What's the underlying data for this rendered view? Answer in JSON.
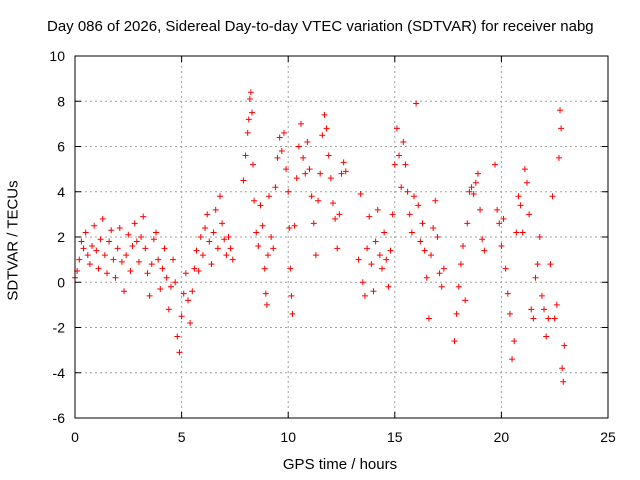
{
  "chart_data": {
    "type": "scatter",
    "title": "Day 086 of 2026, Sidereal Day-to-day VTEC variation (SDTVAR) for receiver nabg",
    "xlabel": "GPS time / hours",
    "ylabel": "SDTVAR / TECUs",
    "xlim": [
      0,
      25
    ],
    "ylim": [
      -6,
      10
    ],
    "xticks": [
      "0",
      "5",
      "10",
      "15",
      "20",
      "25"
    ],
    "yticks": [
      "-6",
      "-4",
      "-2",
      "0",
      "2",
      "4",
      "6",
      "8",
      "10"
    ],
    "grid": true,
    "marker": "+",
    "series": [
      {
        "name": "SDTVAR",
        "color": "#ff0000",
        "points": [
          [
            0.0,
            0.2
          ],
          [
            0.1,
            0.5
          ],
          [
            0.2,
            1.0
          ],
          [
            0.3,
            1.8
          ],
          [
            0.4,
            1.5
          ],
          [
            0.5,
            2.2
          ],
          [
            0.6,
            1.2
          ],
          [
            0.7,
            0.8
          ],
          [
            0.8,
            1.6
          ],
          [
            0.9,
            2.5
          ],
          [
            1.0,
            1.4
          ],
          [
            1.1,
            0.6
          ],
          [
            1.2,
            1.9
          ],
          [
            1.3,
            2.8
          ],
          [
            1.4,
            1.2
          ],
          [
            1.5,
            0.4
          ],
          [
            1.6,
            1.8
          ],
          [
            1.7,
            2.3
          ],
          [
            1.8,
            1.0
          ],
          [
            1.9,
            0.2
          ],
          [
            2.0,
            1.5
          ],
          [
            2.1,
            2.4
          ],
          [
            2.2,
            0.9
          ],
          [
            2.3,
            -0.4
          ],
          [
            2.4,
            1.2
          ],
          [
            2.5,
            2.1
          ],
          [
            2.6,
            0.5
          ],
          [
            2.7,
            1.6
          ],
          [
            2.8,
            2.6
          ],
          [
            2.9,
            1.8
          ],
          [
            3.0,
            0.9
          ],
          [
            3.1,
            2.0
          ],
          [
            3.2,
            2.9
          ],
          [
            3.3,
            1.5
          ],
          [
            3.4,
            0.4
          ],
          [
            3.5,
            -0.6
          ],
          [
            3.6,
            0.8
          ],
          [
            3.7,
            1.9
          ],
          [
            3.8,
            2.2
          ],
          [
            3.9,
            1.0
          ],
          [
            4.0,
            -0.3
          ],
          [
            4.1,
            0.6
          ],
          [
            4.2,
            1.5
          ],
          [
            4.3,
            0.2
          ],
          [
            4.4,
            -1.2
          ],
          [
            4.5,
            -0.2
          ],
          [
            4.6,
            1.0
          ],
          [
            4.7,
            0.0
          ],
          [
            4.8,
            -2.4
          ],
          [
            4.9,
            -3.1
          ],
          [
            5.0,
            -1.5
          ],
          [
            5.1,
            -0.5
          ],
          [
            5.2,
            0.4
          ],
          [
            5.3,
            -0.8
          ],
          [
            5.4,
            -1.8
          ],
          [
            5.5,
            -0.4
          ],
          [
            5.6,
            0.6
          ],
          [
            5.7,
            1.4
          ],
          [
            5.8,
            0.5
          ],
          [
            5.9,
            2.0
          ],
          [
            6.0,
            1.2
          ],
          [
            6.1,
            2.4
          ],
          [
            6.2,
            3.0
          ],
          [
            6.3,
            1.8
          ],
          [
            6.4,
            0.8
          ],
          [
            6.5,
            2.2
          ],
          [
            6.6,
            3.2
          ],
          [
            6.7,
            1.5
          ],
          [
            6.8,
            3.8
          ],
          [
            6.9,
            2.6
          ],
          [
            7.0,
            1.9
          ],
          [
            7.1,
            1.2
          ],
          [
            7.2,
            2.0
          ],
          [
            7.3,
            1.5
          ],
          [
            7.4,
            1.0
          ],
          [
            7.9,
            4.5
          ],
          [
            8.0,
            5.6
          ],
          [
            8.1,
            6.6
          ],
          [
            8.15,
            7.2
          ],
          [
            8.2,
            8.1
          ],
          [
            8.25,
            8.4
          ],
          [
            8.3,
            7.5
          ],
          [
            8.35,
            5.2
          ],
          [
            8.4,
            3.6
          ],
          [
            8.5,
            2.2
          ],
          [
            8.6,
            1.6
          ],
          [
            8.7,
            3.4
          ],
          [
            8.8,
            2.5
          ],
          [
            8.9,
            0.6
          ],
          [
            8.95,
            -0.5
          ],
          [
            9.0,
            -1.0
          ],
          [
            9.05,
            1.2
          ],
          [
            9.1,
            3.8
          ],
          [
            9.2,
            2.0
          ],
          [
            9.3,
            1.5
          ],
          [
            9.4,
            4.2
          ],
          [
            9.5,
            5.5
          ],
          [
            9.6,
            6.4
          ],
          [
            9.7,
            5.8
          ],
          [
            9.8,
            6.6
          ],
          [
            9.9,
            5.0
          ],
          [
            10.0,
            4.0
          ],
          [
            10.05,
            2.4
          ],
          [
            10.1,
            0.6
          ],
          [
            10.15,
            -0.6
          ],
          [
            10.2,
            -1.4
          ],
          [
            10.3,
            2.5
          ],
          [
            10.4,
            4.6
          ],
          [
            10.5,
            6.0
          ],
          [
            10.6,
            7.0
          ],
          [
            10.7,
            5.5
          ],
          [
            10.8,
            4.8
          ],
          [
            10.9,
            6.2
          ],
          [
            11.0,
            5.0
          ],
          [
            11.1,
            3.8
          ],
          [
            11.2,
            2.6
          ],
          [
            11.3,
            1.2
          ],
          [
            11.4,
            3.6
          ],
          [
            11.5,
            4.8
          ],
          [
            11.6,
            6.5
          ],
          [
            11.7,
            7.4
          ],
          [
            11.8,
            6.8
          ],
          [
            11.9,
            5.6
          ],
          [
            12.0,
            4.6
          ],
          [
            12.1,
            3.5
          ],
          [
            12.2,
            2.8
          ],
          [
            12.3,
            1.5
          ],
          [
            12.4,
            3.0
          ],
          [
            12.5,
            4.8
          ],
          [
            12.6,
            5.3
          ],
          [
            12.7,
            4.9
          ],
          [
            13.3,
            1.0
          ],
          [
            13.4,
            3.9
          ],
          [
            13.5,
            0.0
          ],
          [
            13.6,
            -0.6
          ],
          [
            13.7,
            1.5
          ],
          [
            13.8,
            2.9
          ],
          [
            13.9,
            0.8
          ],
          [
            14.0,
            -0.4
          ],
          [
            14.1,
            1.8
          ],
          [
            14.2,
            3.2
          ],
          [
            14.3,
            1.2
          ],
          [
            14.4,
            0.6
          ],
          [
            14.5,
            2.2
          ],
          [
            14.6,
            1.0
          ],
          [
            14.7,
            -0.2
          ],
          [
            14.8,
            1.4
          ],
          [
            14.9,
            3.0
          ],
          [
            15.0,
            5.2
          ],
          [
            15.1,
            6.8
          ],
          [
            15.2,
            5.6
          ],
          [
            15.3,
            4.2
          ],
          [
            15.4,
            6.2
          ],
          [
            15.5,
            5.2
          ],
          [
            15.6,
            4.0
          ],
          [
            15.7,
            3.0
          ],
          [
            15.8,
            2.2
          ],
          [
            15.9,
            3.8
          ],
          [
            16.0,
            7.9
          ],
          [
            16.1,
            3.4
          ],
          [
            16.2,
            1.8
          ],
          [
            16.3,
            2.6
          ],
          [
            16.4,
            1.4
          ],
          [
            16.5,
            0.2
          ],
          [
            16.6,
            -1.6
          ],
          [
            16.7,
            1.2
          ],
          [
            16.8,
            2.4
          ],
          [
            16.9,
            3.6
          ],
          [
            17.0,
            2.0
          ],
          [
            17.1,
            0.4
          ],
          [
            17.2,
            -0.2
          ],
          [
            17.3,
            0.6
          ],
          [
            17.8,
            -2.6
          ],
          [
            17.9,
            -1.4
          ],
          [
            18.0,
            -0.2
          ],
          [
            18.1,
            0.8
          ],
          [
            18.2,
            1.6
          ],
          [
            18.3,
            -0.8
          ],
          [
            18.4,
            2.6
          ],
          [
            18.5,
            4.0
          ],
          [
            18.6,
            4.2
          ],
          [
            18.7,
            3.9
          ],
          [
            18.8,
            4.4
          ],
          [
            18.9,
            4.8
          ],
          [
            19.0,
            3.2
          ],
          [
            19.1,
            1.9
          ],
          [
            19.2,
            1.4
          ],
          [
            19.7,
            5.2
          ],
          [
            19.8,
            3.2
          ],
          [
            19.9,
            2.6
          ],
          [
            20.0,
            1.6
          ],
          [
            20.1,
            2.8
          ],
          [
            20.2,
            0.6
          ],
          [
            20.3,
            -0.5
          ],
          [
            20.4,
            -1.4
          ],
          [
            20.5,
            -3.4
          ],
          [
            20.6,
            -2.6
          ],
          [
            20.7,
            2.2
          ],
          [
            20.8,
            3.8
          ],
          [
            20.9,
            3.4
          ],
          [
            21.0,
            2.2
          ],
          [
            21.1,
            5.0
          ],
          [
            21.2,
            4.4
          ],
          [
            21.3,
            3.0
          ],
          [
            21.4,
            -1.2
          ],
          [
            21.5,
            -1.6
          ],
          [
            21.6,
            0.2
          ],
          [
            21.7,
            0.8
          ],
          [
            21.8,
            2.0
          ],
          [
            21.9,
            -0.6
          ],
          [
            22.0,
            -1.2
          ],
          [
            22.1,
            -2.4
          ],
          [
            22.2,
            -1.6
          ],
          [
            22.3,
            0.8
          ],
          [
            22.4,
            3.8
          ],
          [
            22.5,
            -1.6
          ],
          [
            22.6,
            -1.0
          ],
          [
            22.7,
            5.5
          ],
          [
            22.75,
            7.6
          ],
          [
            22.8,
            6.8
          ],
          [
            22.85,
            -3.8
          ],
          [
            22.9,
            -4.4
          ],
          [
            22.95,
            -2.8
          ]
        ]
      }
    ]
  }
}
